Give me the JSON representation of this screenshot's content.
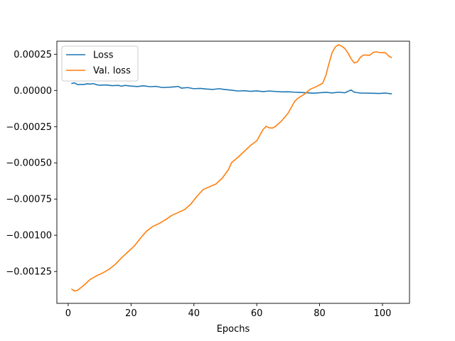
{
  "chart_data": {
    "type": "line",
    "title": "",
    "xlabel": "Epochs",
    "ylabel": "",
    "xlim": [
      -3.6,
      108.6
    ],
    "ylim": [
      -0.00147,
      0.00034
    ],
    "x_ticks": [
      0,
      20,
      40,
      60,
      80,
      100
    ],
    "y_ticks": [
      0.00025,
      0.0,
      -0.00025,
      -0.0005,
      -0.00075,
      -0.001,
      -0.00125
    ],
    "y_tick_labels": [
      "0.00025",
      "0.00000",
      "−0.00025",
      "−0.00050",
      "−0.00075",
      "−0.00100",
      "−0.00125"
    ],
    "x_tick_labels": [
      "0",
      "20",
      "40",
      "60",
      "80",
      "100"
    ],
    "grid": false,
    "legend_position": "top-left",
    "series": [
      {
        "name": "Loss",
        "color": "#1f77b4",
        "points": [
          [
            1,
            4.8e-05
          ],
          [
            2,
            5.2e-05
          ],
          [
            3,
            4e-05
          ],
          [
            4,
            4.2e-05
          ],
          [
            5,
            4.1e-05
          ],
          [
            6,
            4.6e-05
          ],
          [
            7,
            4.4e-05
          ],
          [
            8,
            4.7e-05
          ],
          [
            9,
            4e-05
          ],
          [
            10,
            3.6e-05
          ],
          [
            12,
            3.8e-05
          ],
          [
            14,
            3.3e-05
          ],
          [
            16,
            3.5e-05
          ],
          [
            17,
            2.9e-05
          ],
          [
            18,
            3.5e-05
          ],
          [
            20,
            3e-05
          ],
          [
            22,
            2.7e-05
          ],
          [
            24,
            3.2e-05
          ],
          [
            26,
            2.6e-05
          ],
          [
            28,
            2.8e-05
          ],
          [
            30,
            2e-05
          ],
          [
            32,
            2.2e-05
          ],
          [
            34,
            2.5e-05
          ],
          [
            35,
            2.8e-05
          ],
          [
            36,
            1.6e-05
          ],
          [
            38,
            2e-05
          ],
          [
            40,
            1.2e-05
          ],
          [
            42,
            1.4e-05
          ],
          [
            44,
            1e-05
          ],
          [
            46,
            7e-06
          ],
          [
            48,
            1.2e-05
          ],
          [
            50,
            6e-06
          ],
          [
            52,
            2e-06
          ],
          [
            54,
            -4e-06
          ],
          [
            56,
            -2e-06
          ],
          [
            58,
            -6e-06
          ],
          [
            60,
            -3e-06
          ],
          [
            62,
            -8e-06
          ],
          [
            64,
            -4e-06
          ],
          [
            66,
            -7e-06
          ],
          [
            68,
            -1e-05
          ],
          [
            70,
            -9e-06
          ],
          [
            72,
            -1.2e-05
          ],
          [
            74,
            -1.4e-05
          ],
          [
            76,
            -1.6e-05
          ],
          [
            78,
            -1.9e-05
          ],
          [
            80,
            -1.6e-05
          ],
          [
            82,
            -1.3e-05
          ],
          [
            84,
            -1.7e-05
          ],
          [
            86,
            -1.2e-05
          ],
          [
            88,
            -1.6e-05
          ],
          [
            90,
            3e-06
          ],
          [
            91,
            -1.2e-05
          ],
          [
            93,
            -1.8e-05
          ],
          [
            96,
            -1.9e-05
          ],
          [
            99,
            -2.1e-05
          ],
          [
            101,
            -1.8e-05
          ],
          [
            103,
            -2.4e-05
          ]
        ]
      },
      {
        "name": "Val. loss",
        "color": "#ff7f0e",
        "points": [
          [
            1,
            -0.00137
          ],
          [
            2,
            -0.001385
          ],
          [
            3,
            -0.00138
          ],
          [
            5,
            -0.001345
          ],
          [
            7,
            -0.001305
          ],
          [
            9,
            -0.00128
          ],
          [
            11,
            -0.00126
          ],
          [
            13,
            -0.001235
          ],
          [
            15,
            -0.0012
          ],
          [
            17,
            -0.001155
          ],
          [
            19,
            -0.001115
          ],
          [
            21,
            -0.001075
          ],
          [
            23,
            -0.00102
          ],
          [
            25,
            -0.00097
          ],
          [
            27,
            -0.000938
          ],
          [
            29,
            -0.000918
          ],
          [
            31,
            -0.000892
          ],
          [
            33,
            -0.000862
          ],
          [
            35,
            -0.000843
          ],
          [
            37,
            -0.000823
          ],
          [
            39,
            -0.000785
          ],
          [
            41,
            -0.00073
          ],
          [
            43,
            -0.000683
          ],
          [
            45,
            -0.000665
          ],
          [
            47,
            -0.000646
          ],
          [
            49,
            -0.000606
          ],
          [
            51,
            -0.000546
          ],
          [
            52,
            -0.000498
          ],
          [
            54,
            -0.000462
          ],
          [
            56,
            -0.000421
          ],
          [
            58,
            -0.00038
          ],
          [
            60,
            -0.000348
          ],
          [
            62,
            -0.00027
          ],
          [
            63,
            -0.000248
          ],
          [
            64,
            -0.000258
          ],
          [
            65,
            -0.00026
          ],
          [
            66,
            -0.000248
          ],
          [
            68,
            -0.000208
          ],
          [
            70,
            -0.000156
          ],
          [
            72,
            -7.8e-05
          ],
          [
            73,
            -5.5e-05
          ],
          [
            75,
            -2.8e-05
          ],
          [
            77,
            8e-06
          ],
          [
            79,
            2.7e-05
          ],
          [
            81,
            5e-05
          ],
          [
            82,
            0.000105
          ],
          [
            83,
            0.000188
          ],
          [
            84,
            0.000262
          ],
          [
            85,
            0.0003
          ],
          [
            86,
            0.000316
          ],
          [
            87,
            0.000306
          ],
          [
            88,
            0.00029
          ],
          [
            89,
            0.00026
          ],
          [
            90,
            0.00022
          ],
          [
            91,
            0.00019
          ],
          [
            92,
            0.000196
          ],
          [
            93,
            0.00023
          ],
          [
            94,
            0.000245
          ],
          [
            96,
            0.000243
          ],
          [
            97,
            0.000262
          ],
          [
            98,
            0.000267
          ],
          [
            99,
            0.000262
          ],
          [
            101,
            0.00026
          ],
          [
            102,
            0.000237
          ],
          [
            103,
            0.000226
          ]
        ]
      }
    ]
  }
}
